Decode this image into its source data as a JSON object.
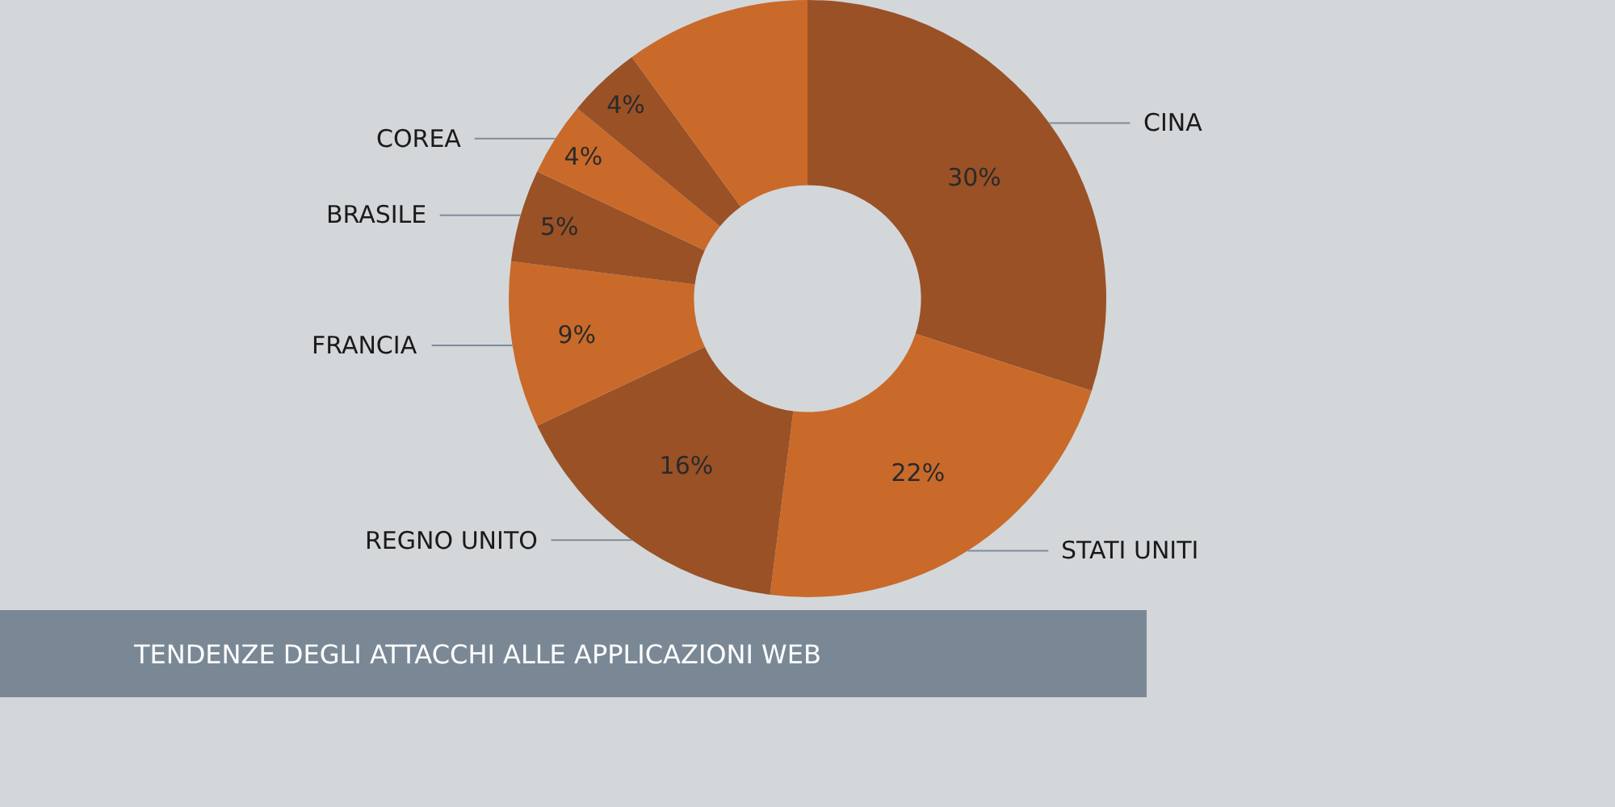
{
  "chart_data": {
    "type": "donut",
    "title": "TENDENZE DEGLI ATTACCHI ALLE APPLICAZIONI WEB",
    "categories": [
      "CINA",
      "STATI UNITI",
      "REGNO UNITO",
      "FRANCIA",
      "BRASILE",
      "COREA",
      null,
      null
    ],
    "values": [
      30,
      22,
      16,
      9,
      5,
      4,
      4,
      10
    ],
    "value_labels": [
      "30%",
      "22%",
      "16%",
      "9%",
      "5%",
      "4%",
      "4%",
      null
    ],
    "colors": [
      "#9a5126",
      "#c96a2a",
      "#9a5126",
      "#c96a2a",
      "#9a5126",
      "#c96a2a",
      "#9a5126",
      "#c96a2a"
    ],
    "legend": false
  }
}
